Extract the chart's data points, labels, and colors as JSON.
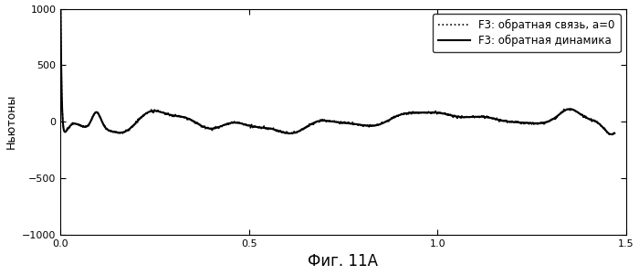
{
  "title": "",
  "xlabel": "Фиг. 11А",
  "ylabel": "Ньютоны",
  "xlim": [
    0,
    1.5
  ],
  "ylim": [
    -1000,
    1000
  ],
  "xticks": [
    0,
    0.5,
    1.0,
    1.5
  ],
  "yticks": [
    -1000,
    -500,
    0,
    500,
    1000
  ],
  "legend_label_dotted": "F3: обратная связь, a=0",
  "legend_label_solid": "F3: обратная динамика",
  "color_dotted": "#000000",
  "color_solid": "#000000",
  "background_color": "#ffffff",
  "figsize": [
    7.0,
    3.01
  ],
  "dpi": 100
}
